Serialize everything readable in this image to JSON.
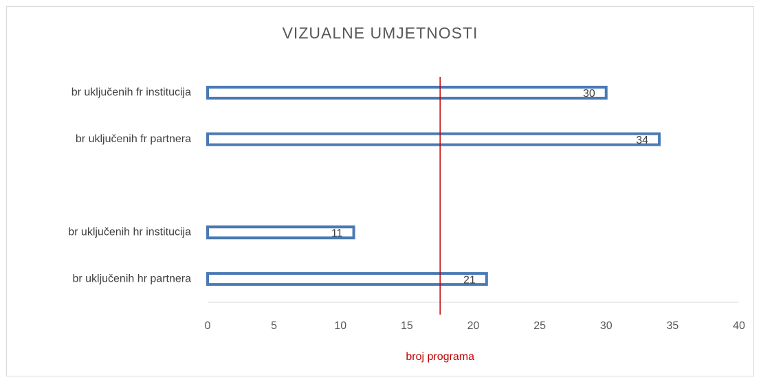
{
  "chart_data": {
    "type": "bar",
    "orientation": "horizontal",
    "title": "VIZUALNE UMJETNOSTI",
    "categories": [
      "br uključenih fr institucija",
      "br uključenih fr partnera",
      null,
      "br uključenih hr institucija",
      "br uključenih hr partnera"
    ],
    "values": [
      30,
      34,
      null,
      11,
      21
    ],
    "color": "#4a7ab5",
    "xlim": [
      0,
      40
    ],
    "xticks": [
      0,
      5,
      10,
      15,
      20,
      25,
      30,
      35,
      40
    ],
    "reference_line": {
      "value": 17.5,
      "label": "broj programa",
      "color": "#c00000"
    }
  }
}
